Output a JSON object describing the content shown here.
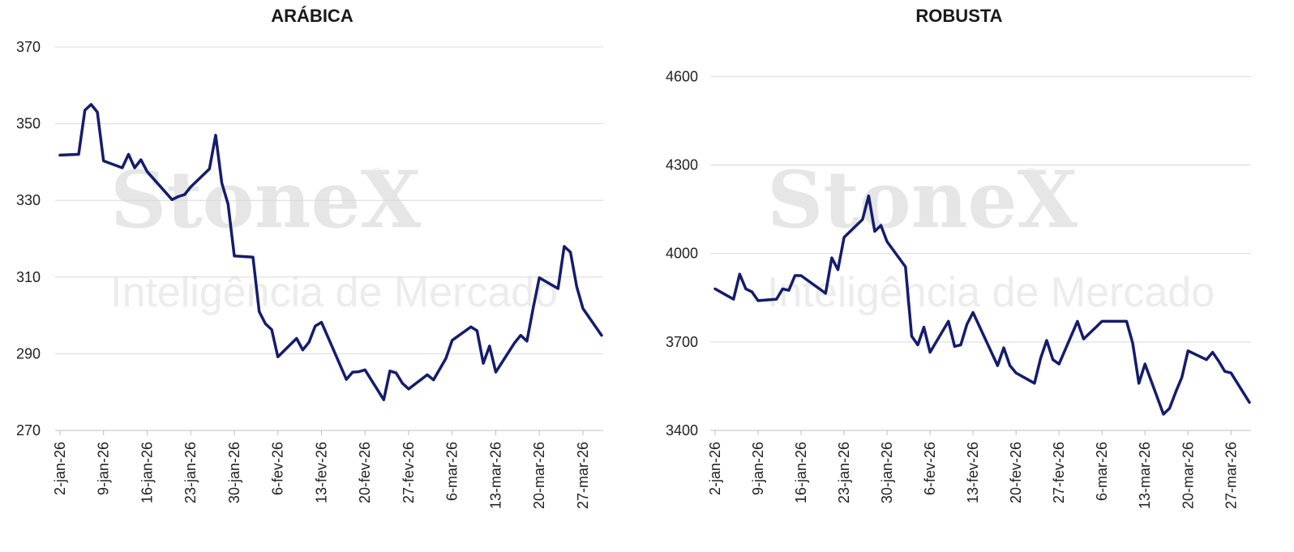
{
  "colors": {
    "line": "#141c6e",
    "grid": "#d9d9d9"
  },
  "watermark": {
    "brand": "StoneX",
    "registered": "®",
    "tagline": "Inteligência de Mercado"
  },
  "chart_data": [
    {
      "type": "line",
      "title": "ARÁBICA",
      "x_tick_labels": [
        "2-jan-26",
        "9-jan-26",
        "16-jan-26",
        "23-jan-26",
        "30-jan-26",
        "6-fev-26",
        "13-fev-26",
        "20-fev-26",
        "27-fev-26",
        "6-mar-26",
        "13-mar-26",
        "20-mar-26",
        "27-mar-26"
      ],
      "y_ticks": [
        270,
        290,
        310,
        330,
        350,
        370
      ],
      "ylim": [
        270,
        370
      ],
      "grid": true,
      "series": [
        {
          "dates": [
            "2026-01-02",
            "2026-01-05",
            "2026-01-06",
            "2026-01-07",
            "2026-01-08",
            "2026-01-09",
            "2026-01-12",
            "2026-01-13",
            "2026-01-14",
            "2026-01-15",
            "2026-01-16",
            "2026-01-20",
            "2026-01-21",
            "2026-01-22",
            "2026-01-23",
            "2026-01-26",
            "2026-01-27",
            "2026-01-28",
            "2026-01-29",
            "2026-01-30",
            "2026-02-02",
            "2026-02-03",
            "2026-02-04",
            "2026-02-05",
            "2026-02-06",
            "2026-02-09",
            "2026-02-10",
            "2026-02-11",
            "2026-02-12",
            "2026-02-13",
            "2026-02-17",
            "2026-02-18",
            "2026-02-19",
            "2026-02-20",
            "2026-02-23",
            "2026-02-24",
            "2026-02-25",
            "2026-02-26",
            "2026-02-27",
            "2026-03-02",
            "2026-03-03",
            "2026-03-04",
            "2026-03-05",
            "2026-03-06",
            "2026-03-09",
            "2026-03-10",
            "2026-03-11",
            "2026-03-12",
            "2026-03-13",
            "2026-03-16",
            "2026-03-17",
            "2026-03-18",
            "2026-03-19",
            "2026-03-20",
            "2026-03-23",
            "2026-03-24",
            "2026-03-25",
            "2026-03-26",
            "2026-03-27",
            "2026-03-30"
          ],
          "values": [
            341.8,
            342.0,
            353.5,
            355.0,
            353.0,
            340.3,
            338.5,
            342.0,
            338.5,
            340.6,
            337.5,
            330.2,
            331.0,
            331.5,
            333.5,
            338.2,
            347.0,
            334.5,
            329.0,
            315.5,
            315.2,
            301.0,
            297.8,
            296.3,
            289.2,
            294.0,
            291.0,
            293.0,
            297.2,
            298.2,
            283.3,
            285.2,
            285.3,
            285.8,
            278.0,
            285.5,
            285.0,
            282.3,
            280.8,
            284.5,
            283.2,
            286.0,
            288.8,
            293.5,
            297.0,
            296.0,
            287.5,
            292.0,
            285.2,
            292.8,
            294.8,
            293.3,
            301.8,
            309.8,
            307.0,
            318.0,
            316.5,
            307.5,
            301.8,
            294.8
          ]
        }
      ]
    },
    {
      "type": "line",
      "title": "ROBUSTA",
      "x_tick_labels": [
        "2-jan-26",
        "9-jan-26",
        "16-jan-26",
        "23-jan-26",
        "30-jan-26",
        "6-fev-26",
        "13-fev-26",
        "20-fev-26",
        "27-fev-26",
        "6-mar-26",
        "13-mar-26",
        "20-mar-26",
        "27-mar-26"
      ],
      "y_ticks": [
        3400,
        3700,
        4000,
        4300,
        4600
      ],
      "ylim": [
        3400,
        4700
      ],
      "grid": true,
      "series": [
        {
          "dates": [
            "2026-01-02",
            "2026-01-05",
            "2026-01-06",
            "2026-01-07",
            "2026-01-08",
            "2026-01-09",
            "2026-01-12",
            "2026-01-13",
            "2026-01-14",
            "2026-01-15",
            "2026-01-16",
            "2026-01-20",
            "2026-01-21",
            "2026-01-22",
            "2026-01-23",
            "2026-01-26",
            "2026-01-27",
            "2026-01-28",
            "2026-01-29",
            "2026-01-30",
            "2026-02-02",
            "2026-02-03",
            "2026-02-04",
            "2026-02-05",
            "2026-02-06",
            "2026-02-09",
            "2026-02-10",
            "2026-02-11",
            "2026-02-12",
            "2026-02-13",
            "2026-02-17",
            "2026-02-18",
            "2026-02-19",
            "2026-02-20",
            "2026-02-23",
            "2026-02-24",
            "2026-02-25",
            "2026-02-26",
            "2026-02-27",
            "2026-03-02",
            "2026-03-03",
            "2026-03-04",
            "2026-03-05",
            "2026-03-06",
            "2026-03-09",
            "2026-03-10",
            "2026-03-11",
            "2026-03-12",
            "2026-03-13",
            "2026-03-16",
            "2026-03-17",
            "2026-03-18",
            "2026-03-19",
            "2026-03-20",
            "2026-03-23",
            "2026-03-24",
            "2026-03-25",
            "2026-03-26",
            "2026-03-27",
            "2026-03-30"
          ],
          "values": [
            3880,
            3845,
            3930,
            3880,
            3870,
            3840,
            3845,
            3880,
            3875,
            3925,
            3925,
            3865,
            3985,
            3945,
            4055,
            4115,
            4195,
            4075,
            4095,
            4040,
            3955,
            3720,
            3690,
            3750,
            3665,
            3770,
            3685,
            3690,
            3760,
            3800,
            3620,
            3680,
            3620,
            3595,
            3560,
            3645,
            3705,
            3640,
            3625,
            3770,
            3710,
            3730,
            3750,
            3770,
            3770,
            3770,
            3695,
            3560,
            3625,
            3455,
            3475,
            3530,
            3580,
            3670,
            3640,
            3665,
            3635,
            3600,
            3595,
            3495
          ]
        }
      ]
    }
  ]
}
